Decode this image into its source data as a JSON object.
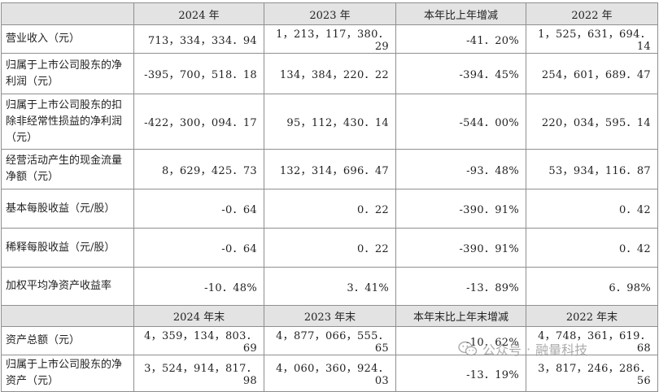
{
  "table": {
    "header": [
      "",
      "2024 年",
      "2023 年",
      "本年比上年增减",
      "2022 年"
    ],
    "rows": [
      [
        "营业收入（元）",
        "713，334，334．94",
        "1，213，117，380．29",
        "-41．20%",
        "1，525，631，694．14"
      ],
      [
        "归属于上市公司股东的净利润（元）",
        "-395，700，518．18",
        "134，384，220．22",
        "-394．45%",
        "254，601，689．47"
      ],
      [
        "归属于上市公司股东的扣除非经常性损益的净利润（元）",
        "-422，300，094．17",
        "95，112，430．14",
        "-544．00%",
        "220，034，595．14"
      ],
      [
        "经营活动产生的现金流量净额（元）",
        "8，629，425．73",
        "132，314，696．47",
        "-93．48%",
        "53，934，116．87"
      ],
      [
        "基本每股收益（元/股）",
        "-0．64",
        "0．22",
        "-390．91%",
        "0．42"
      ],
      [
        "稀释每股收益（元/股）",
        "-0．64",
        "0．22",
        "-390．91%",
        "0．42"
      ],
      [
        "加权平均净资产收益率",
        "-10．48%",
        "3．41%",
        "-13．89%",
        "6．98%"
      ]
    ],
    "header2": [
      "",
      "2024 年末",
      "2023 年末",
      "本年末比上年末增减",
      "2022 年末"
    ],
    "rows2": [
      [
        "资产总额（元）",
        "4，359，134，803．69",
        "4，877，066，555．65",
        "-10．62%",
        "4，748，361，619．68"
      ],
      [
        "归属于上市公司股东的净资产（元）",
        "3，524，914，817．98",
        "4，060，360，924．03",
        "-13．19%",
        "3，817，246，286．56"
      ]
    ]
  },
  "watermark": {
    "icon": "wechat-icon",
    "text": "公众号",
    "separator": "·",
    "name": "融量科技"
  }
}
